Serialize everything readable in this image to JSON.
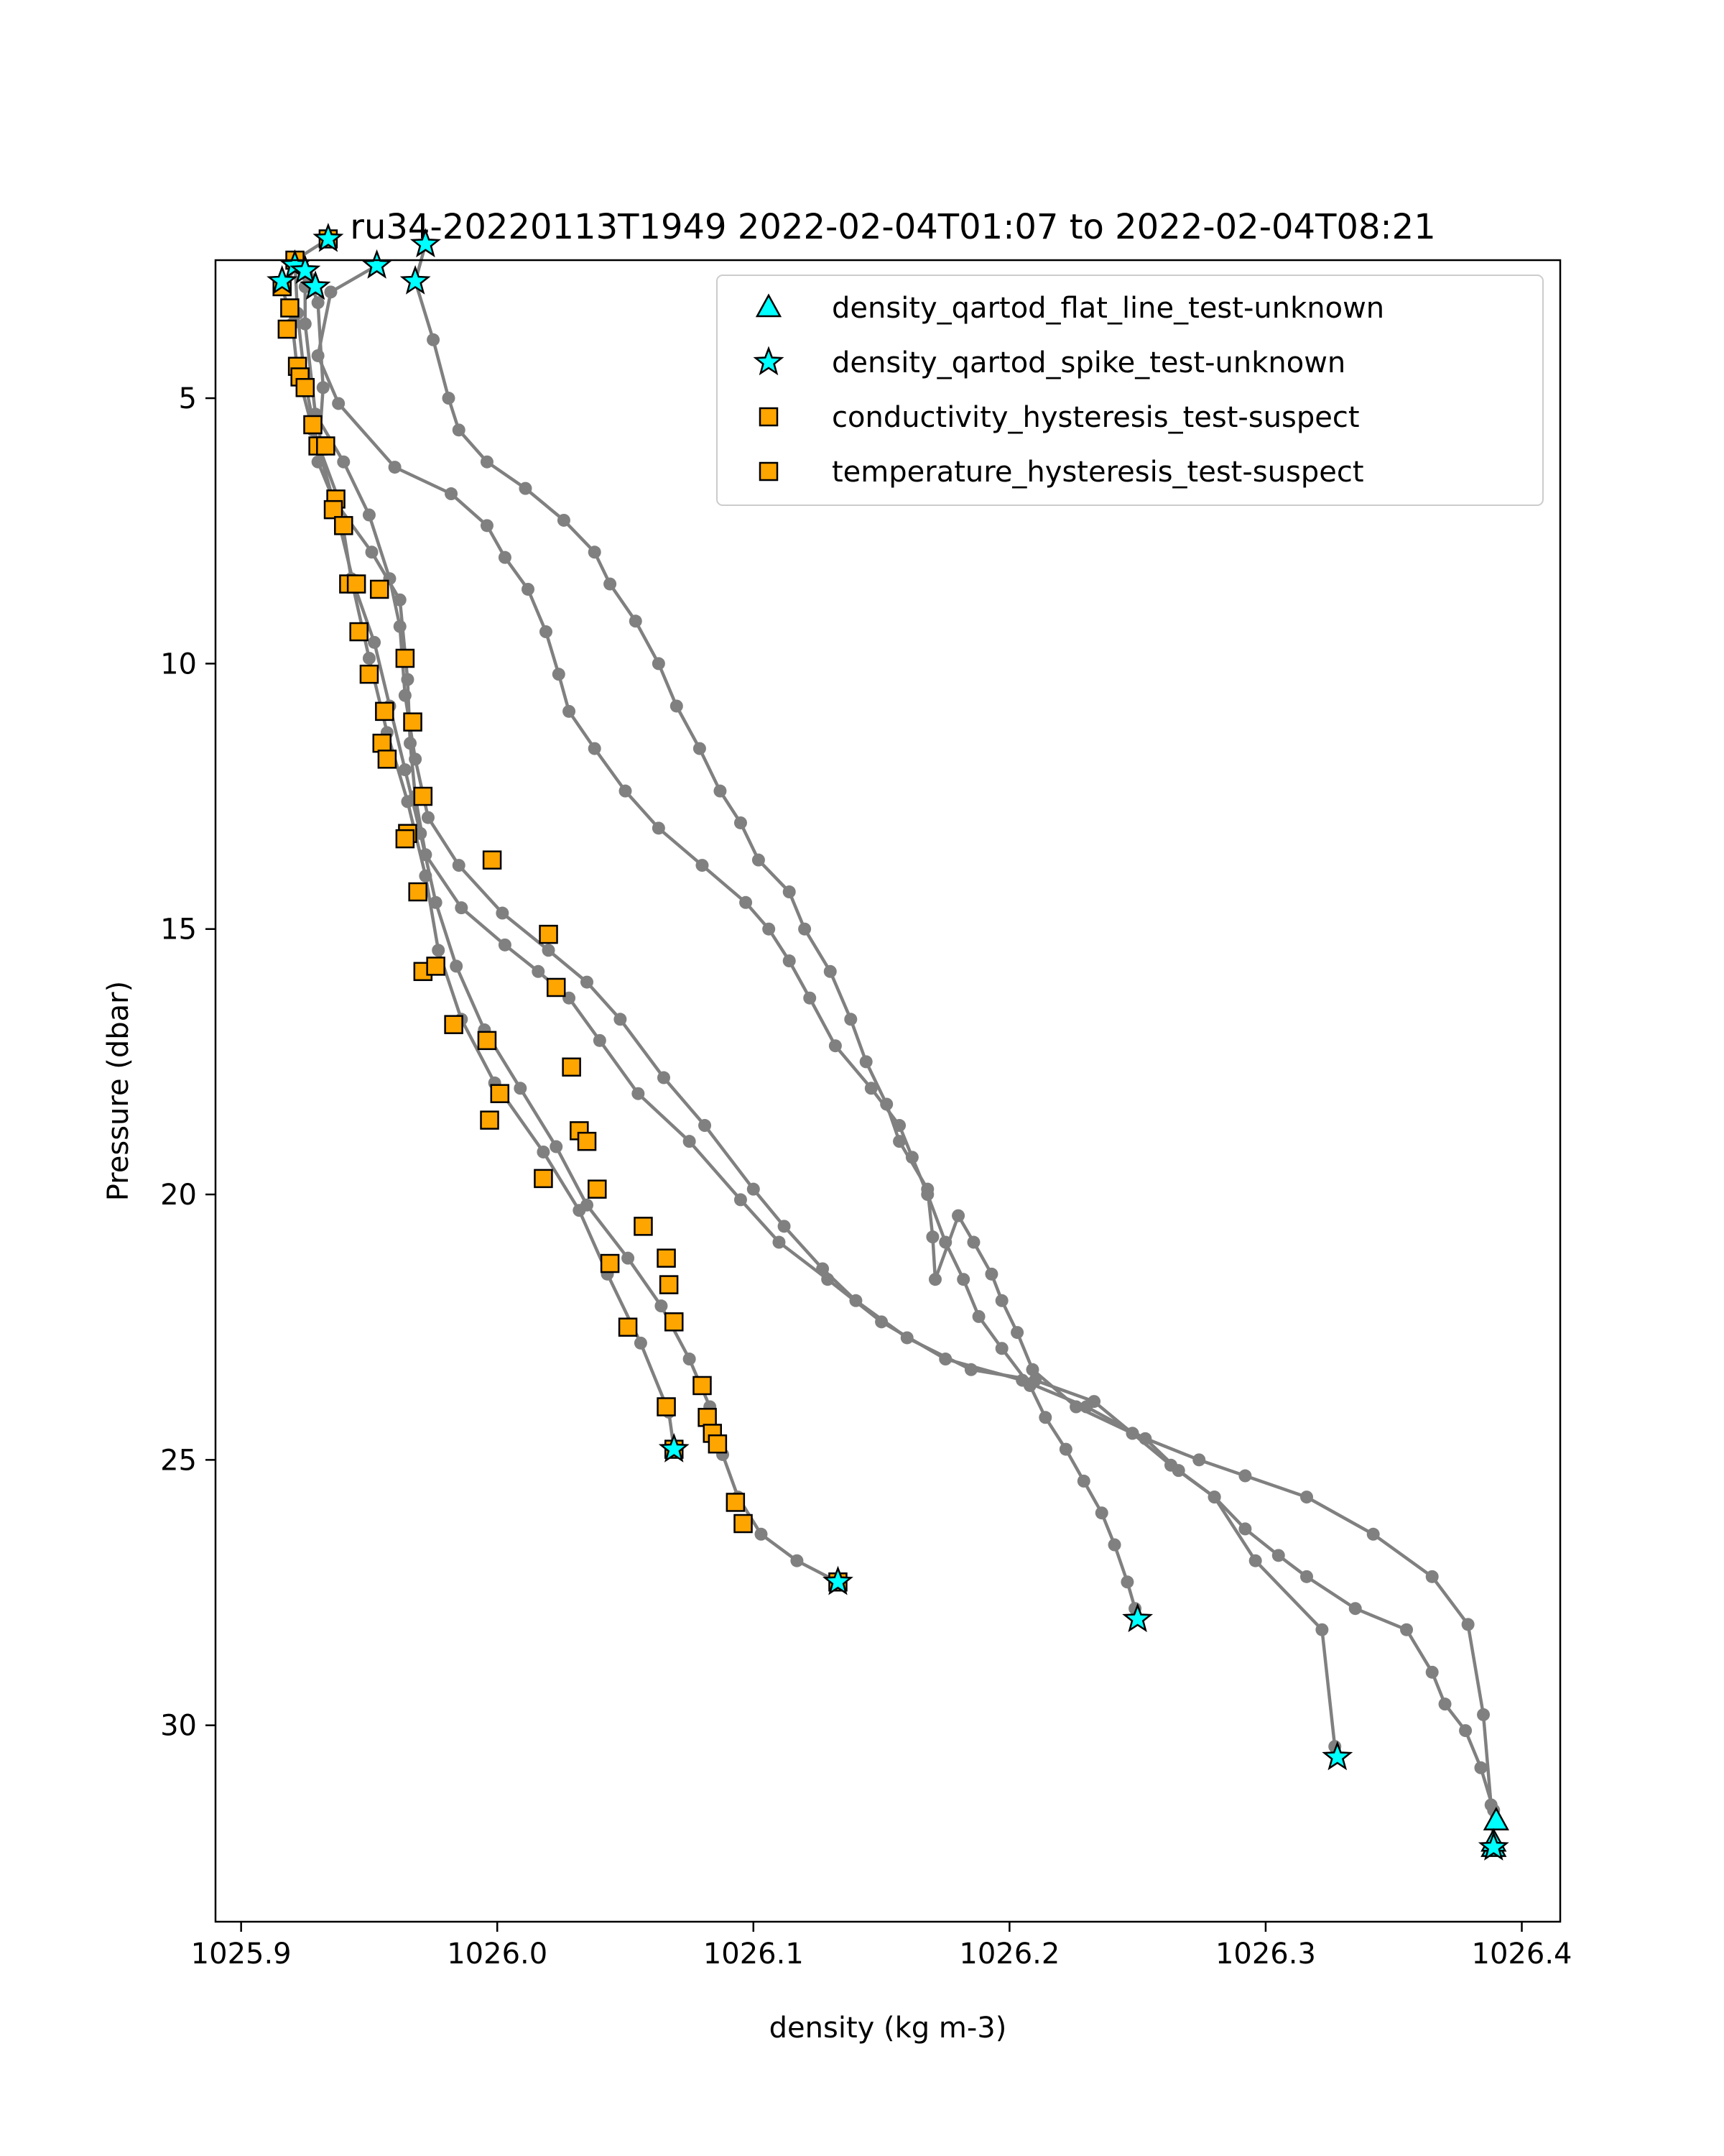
{
  "chart_data": {
    "type": "line",
    "title": "ru34-20220113T1949 2022-02-04T01:07 to 2022-02-04T08:21",
    "xlabel": "density (kg m-3)",
    "ylabel": "Pressure (dbar)",
    "xlim": [
      1025.89,
      1026.415
    ],
    "ylim": [
      33.7,
      2.4
    ],
    "y_inverted": true,
    "grid": false,
    "xticks": [
      "1025.9",
      "1026.0",
      "1026.1",
      "1026.2",
      "1026.3",
      "1026.4"
    ],
    "xtick_values": [
      1025.9,
      1026.0,
      1026.1,
      1026.2,
      1026.3,
      1026.4
    ],
    "yticks": [
      "5",
      "10",
      "15",
      "20",
      "25",
      "30"
    ],
    "ytick_values": [
      5,
      10,
      15,
      20,
      25,
      30
    ],
    "legend_placement": "top-right",
    "line_color": "#808080",
    "series": [
      {
        "values": [
          [
            1025.926,
            2.7
          ],
          [
            1025.93,
            3.2
          ],
          [
            1025.932,
            4.8
          ],
          [
            1025.93,
            6.2
          ],
          [
            1025.936,
            6.9
          ],
          [
            1025.951,
            7.9
          ],
          [
            1025.962,
            8.8
          ],
          [
            1025.965,
            10.3
          ],
          [
            1025.966,
            11.5
          ],
          [
            1025.968,
            12.5
          ],
          [
            1025.972,
            13.6
          ],
          [
            1025.986,
            14.6
          ],
          [
            1026.003,
            15.3
          ],
          [
            1026.016,
            15.8
          ],
          [
            1026.028,
            16.3
          ],
          [
            1026.04,
            17.1
          ],
          [
            1026.055,
            18.1
          ],
          [
            1026.075,
            19.0
          ],
          [
            1026.095,
            20.1
          ],
          [
            1026.11,
            20.9
          ],
          [
            1026.129,
            21.6
          ],
          [
            1026.15,
            22.4
          ],
          [
            1026.175,
            23.1
          ],
          [
            1026.205,
            23.5
          ],
          [
            1026.23,
            24.0
          ],
          [
            1026.253,
            24.6
          ],
          [
            1026.266,
            25.2
          ],
          [
            1026.28,
            25.7
          ],
          [
            1026.292,
            26.3
          ],
          [
            1026.305,
            26.8
          ],
          [
            1026.316,
            27.2
          ],
          [
            1026.335,
            27.8
          ],
          [
            1026.355,
            28.2
          ],
          [
            1026.365,
            29.0
          ],
          [
            1026.37,
            29.6
          ],
          [
            1026.378,
            30.1
          ],
          [
            1026.384,
            30.8
          ],
          [
            1026.389,
            31.6
          ],
          [
            1026.39,
            31.8
          ]
        ]
      },
      {
        "values": [
          [
            1025.925,
            2.9
          ],
          [
            1025.925,
            3.6
          ],
          [
            1025.929,
            5.3
          ],
          [
            1025.94,
            6.2
          ],
          [
            1025.95,
            7.2
          ],
          [
            1025.958,
            8.4
          ],
          [
            1025.962,
            9.3
          ],
          [
            1025.964,
            10.6
          ],
          [
            1025.968,
            11.8
          ],
          [
            1025.973,
            12.9
          ],
          [
            1025.985,
            13.8
          ],
          [
            1026.002,
            14.7
          ],
          [
            1026.02,
            15.4
          ],
          [
            1026.035,
            16.0
          ],
          [
            1026.048,
            16.7
          ],
          [
            1026.065,
            17.8
          ],
          [
            1026.081,
            18.7
          ],
          [
            1026.1,
            19.9
          ],
          [
            1026.112,
            20.6
          ],
          [
            1026.127,
            21.4
          ],
          [
            1026.14,
            22.0
          ],
          [
            1026.16,
            22.7
          ],
          [
            1026.185,
            23.3
          ],
          [
            1026.21,
            23.5
          ],
          [
            1026.233,
            23.9
          ],
          [
            1026.248,
            24.5
          ],
          [
            1026.263,
            25.1
          ],
          [
            1026.28,
            25.7
          ],
          [
            1026.296,
            26.9
          ],
          [
            1026.322,
            28.2
          ],
          [
            1026.327,
            30.4
          ],
          [
            1026.328,
            30.6
          ]
        ]
      },
      {
        "values": [
          [
            1025.953,
            2.5
          ],
          [
            1025.935,
            3.0
          ],
          [
            1025.93,
            4.2
          ],
          [
            1025.938,
            5.1
          ],
          [
            1025.96,
            6.3
          ],
          [
            1025.982,
            6.8
          ],
          [
            1025.996,
            7.4
          ],
          [
            1026.003,
            8.0
          ],
          [
            1026.012,
            8.6
          ],
          [
            1026.019,
            9.4
          ],
          [
            1026.024,
            10.2
          ],
          [
            1026.028,
            10.9
          ],
          [
            1026.038,
            11.6
          ],
          [
            1026.05,
            12.4
          ],
          [
            1026.063,
            13.1
          ],
          [
            1026.08,
            13.8
          ],
          [
            1026.097,
            14.5
          ],
          [
            1026.106,
            15.0
          ],
          [
            1026.114,
            15.6
          ],
          [
            1026.122,
            16.3
          ],
          [
            1026.132,
            17.2
          ],
          [
            1026.146,
            18.0
          ],
          [
            1026.157,
            18.7
          ],
          [
            1026.162,
            19.3
          ],
          [
            1026.168,
            20.0
          ],
          [
            1026.175,
            20.9
          ],
          [
            1026.182,
            21.6
          ],
          [
            1026.188,
            22.3
          ],
          [
            1026.197,
            22.9
          ],
          [
            1026.208,
            23.6
          ],
          [
            1026.214,
            24.2
          ],
          [
            1026.222,
            24.8
          ],
          [
            1026.229,
            25.4
          ],
          [
            1026.236,
            26.0
          ],
          [
            1026.241,
            26.6
          ],
          [
            1026.246,
            27.3
          ],
          [
            1026.249,
            27.8
          ],
          [
            1026.25,
            28.0
          ]
        ]
      },
      {
        "values": [
          [
            1025.972,
            2.1
          ],
          [
            1025.968,
            2.8
          ],
          [
            1025.975,
            3.9
          ],
          [
            1025.981,
            5.0
          ],
          [
            1025.985,
            5.6
          ],
          [
            1025.996,
            6.2
          ],
          [
            1026.011,
            6.7
          ],
          [
            1026.026,
            7.3
          ],
          [
            1026.038,
            7.9
          ],
          [
            1026.044,
            8.5
          ],
          [
            1026.054,
            9.2
          ],
          [
            1026.063,
            10.0
          ],
          [
            1026.07,
            10.8
          ],
          [
            1026.079,
            11.6
          ],
          [
            1026.087,
            12.4
          ],
          [
            1026.095,
            13.0
          ],
          [
            1026.102,
            13.7
          ],
          [
            1026.114,
            14.3
          ],
          [
            1026.12,
            15.0
          ],
          [
            1026.13,
            15.8
          ],
          [
            1026.138,
            16.7
          ],
          [
            1026.144,
            17.5
          ],
          [
            1026.152,
            18.3
          ],
          [
            1026.157,
            19.0
          ],
          [
            1026.168,
            19.9
          ],
          [
            1026.17,
            20.8
          ],
          [
            1026.171,
            21.6
          ],
          [
            1026.18,
            20.4
          ],
          [
            1026.186,
            20.9
          ],
          [
            1026.193,
            21.5
          ],
          [
            1026.197,
            22.0
          ],
          [
            1026.203,
            22.6
          ],
          [
            1026.209,
            23.3
          ],
          [
            1026.226,
            24.0
          ],
          [
            1026.248,
            24.5
          ],
          [
            1026.274,
            25.0
          ],
          [
            1026.292,
            25.3
          ],
          [
            1026.316,
            25.7
          ],
          [
            1026.342,
            26.4
          ],
          [
            1026.365,
            27.2
          ],
          [
            1026.379,
            28.1
          ],
          [
            1026.385,
            29.8
          ],
          [
            1026.388,
            31.5
          ],
          [
            1026.389,
            32.3
          ]
        ]
      },
      {
        "values": [
          [
            1025.922,
            2.5
          ],
          [
            1025.916,
            2.9
          ],
          [
            1025.92,
            3.6
          ],
          [
            1025.922,
            4.5
          ],
          [
            1025.928,
            5.6
          ],
          [
            1025.938,
            6.9
          ],
          [
            1025.943,
            8.4
          ],
          [
            1025.95,
            9.9
          ],
          [
            1025.957,
            11.3
          ],
          [
            1025.965,
            12.6
          ],
          [
            1025.972,
            14.0
          ],
          [
            1025.977,
            15.4
          ],
          [
            1025.986,
            16.7
          ],
          [
            1025.999,
            17.9
          ],
          [
            1026.018,
            19.2
          ],
          [
            1026.032,
            20.3
          ],
          [
            1026.043,
            21.5
          ],
          [
            1026.056,
            22.8
          ],
          [
            1026.067,
            24.1
          ],
          [
            1026.069,
            24.8
          ]
        ]
      },
      {
        "values": [
          [
            1025.934,
            2.0
          ],
          [
            1025.921,
            2.4
          ],
          [
            1025.922,
            3.4
          ],
          [
            1025.925,
            4.7
          ],
          [
            1025.93,
            5.9
          ],
          [
            1025.937,
            7.1
          ],
          [
            1025.944,
            8.5
          ],
          [
            1025.952,
            9.6
          ],
          [
            1025.958,
            10.8
          ],
          [
            1025.964,
            12.0
          ],
          [
            1025.97,
            13.2
          ],
          [
            1025.976,
            14.5
          ],
          [
            1025.984,
            15.7
          ],
          [
            1025.995,
            16.9
          ],
          [
            1026.009,
            18.0
          ],
          [
            1026.023,
            19.1
          ],
          [
            1026.035,
            20.2
          ],
          [
            1026.051,
            21.2
          ],
          [
            1026.064,
            22.1
          ],
          [
            1026.075,
            23.1
          ],
          [
            1026.083,
            24.0
          ],
          [
            1026.088,
            24.9
          ],
          [
            1026.094,
            25.7
          ],
          [
            1026.103,
            26.4
          ],
          [
            1026.117,
            26.9
          ],
          [
            1026.133,
            27.3
          ]
        ]
      }
    ],
    "flagged_points": [
      {
        "name": "density_qartod_flat_line_test-unknown",
        "marker": "triangle",
        "color": "#00ffff",
        "points": [
          [
            1026.39,
            31.8
          ],
          [
            1026.389,
            32.3
          ],
          [
            1026.389,
            32.2
          ]
        ]
      },
      {
        "name": "density_qartod_spike_test-unknown",
        "marker": "star",
        "color": "#00ffff",
        "points": [
          [
            1025.934,
            2.0
          ],
          [
            1025.921,
            2.5
          ],
          [
            1025.925,
            2.6
          ],
          [
            1025.929,
            2.9
          ],
          [
            1025.916,
            2.8
          ],
          [
            1025.953,
            2.5
          ],
          [
            1025.972,
            2.1
          ],
          [
            1025.968,
            2.8
          ],
          [
            1026.069,
            24.8
          ],
          [
            1026.133,
            27.3
          ],
          [
            1026.25,
            28.0
          ],
          [
            1026.328,
            30.6
          ],
          [
            1026.389,
            32.3
          ]
        ]
      },
      {
        "name": "conductivity_hysteresis_test-suspect",
        "marker": "square",
        "color": "#ffa500",
        "points": [
          [
            1025.921,
            2.4
          ],
          [
            1025.934,
            2.0
          ],
          [
            1025.916,
            2.9
          ],
          [
            1025.919,
            3.3
          ],
          [
            1025.918,
            3.7
          ],
          [
            1025.922,
            4.4
          ],
          [
            1025.923,
            4.6
          ],
          [
            1025.925,
            4.8
          ],
          [
            1025.928,
            5.5
          ],
          [
            1025.93,
            5.9
          ],
          [
            1025.933,
            5.9
          ],
          [
            1025.937,
            6.9
          ],
          [
            1025.936,
            7.1
          ],
          [
            1025.94,
            7.4
          ],
          [
            1025.942,
            8.5
          ],
          [
            1025.945,
            8.5
          ],
          [
            1025.954,
            8.6
          ],
          [
            1025.946,
            9.4
          ],
          [
            1025.95,
            10.2
          ],
          [
            1025.964,
            9.9
          ],
          [
            1025.967,
            11.1
          ],
          [
            1025.956,
            10.9
          ],
          [
            1025.955,
            11.5
          ],
          [
            1025.957,
            11.8
          ],
          [
            1025.971,
            12.5
          ],
          [
            1025.965,
            13.2
          ],
          [
            1025.964,
            13.3
          ],
          [
            1025.998,
            13.7
          ],
          [
            1025.969,
            14.3
          ],
          [
            1025.971,
            15.8
          ],
          [
            1025.976,
            15.7
          ],
          [
            1026.02,
            15.1
          ],
          [
            1026.023,
            16.1
          ],
          [
            1025.983,
            16.8
          ],
          [
            1025.996,
            17.1
          ],
          [
            1026.001,
            18.1
          ],
          [
            1025.997,
            18.6
          ],
          [
            1026.029,
            17.6
          ],
          [
            1026.032,
            18.8
          ],
          [
            1026.035,
            19.0
          ],
          [
            1026.018,
            19.7
          ],
          [
            1026.039,
            19.9
          ],
          [
            1026.057,
            20.6
          ],
          [
            1026.066,
            21.2
          ],
          [
            1026.044,
            21.3
          ],
          [
            1026.067,
            21.7
          ],
          [
            1026.069,
            22.4
          ],
          [
            1026.051,
            22.5
          ],
          [
            1026.08,
            23.6
          ],
          [
            1026.082,
            24.2
          ],
          [
            1026.066,
            24.0
          ],
          [
            1026.084,
            24.5
          ],
          [
            1026.086,
            24.7
          ],
          [
            1026.069,
            24.8
          ],
          [
            1026.093,
            25.8
          ],
          [
            1026.096,
            26.2
          ],
          [
            1026.133,
            27.3
          ]
        ]
      },
      {
        "name": "temperature_hysteresis_test-suspect",
        "marker": "square",
        "color": "#ffa500",
        "points": []
      }
    ]
  },
  "legend": {
    "items": [
      {
        "label": "density_qartod_flat_line_test-unknown",
        "marker": "triangle",
        "color": "#00ffff"
      },
      {
        "label": "density_qartod_spike_test-unknown",
        "marker": "star",
        "color": "#00ffff"
      },
      {
        "label": "conductivity_hysteresis_test-suspect",
        "marker": "square",
        "color": "#ffa500"
      },
      {
        "label": "temperature_hysteresis_test-suspect",
        "marker": "square",
        "color": "#ffa500"
      }
    ]
  }
}
